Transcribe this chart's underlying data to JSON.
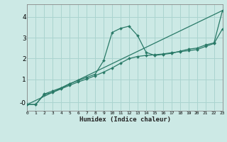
{
  "xlabel": "Humidex (Indice chaleur)",
  "bg_color": "#cce9e5",
  "grid_color": "#aad4cf",
  "line_color": "#2a7a68",
  "xlim": [
    0,
    23
  ],
  "ylim": [
    -0.5,
    4.6
  ],
  "xtick_labels": [
    "0",
    "1",
    "2",
    "3",
    "4",
    "5",
    "6",
    "7",
    "8",
    "9",
    "10",
    "11",
    "12",
    "13",
    "14",
    "15",
    "16",
    "17",
    "18",
    "19",
    "20",
    "21",
    "22",
    "23"
  ],
  "ytick_labels": [
    "-0",
    "1",
    "2",
    "3",
    "4"
  ],
  "ytick_vals": [
    -0.1,
    1,
    2,
    3,
    4
  ],
  "series1_x": [
    0,
    1,
    2,
    3,
    4,
    5,
    6,
    7,
    8,
    9,
    10,
    11,
    12,
    13,
    14,
    15,
    16,
    17,
    18,
    19,
    20,
    21,
    22,
    23
  ],
  "series1_y": [
    -0.2,
    -0.2,
    0.3,
    0.45,
    0.6,
    0.8,
    0.95,
    1.1,
    1.25,
    1.9,
    3.25,
    3.45,
    3.55,
    3.1,
    2.3,
    2.15,
    2.2,
    2.25,
    2.35,
    2.45,
    2.5,
    2.65,
    2.75,
    4.3
  ],
  "series2_x": [
    0,
    1,
    2,
    3,
    4,
    5,
    6,
    7,
    8,
    9,
    10,
    11,
    12,
    13,
    14,
    15,
    16,
    17,
    18,
    19,
    20,
    21,
    22,
    23
  ],
  "series2_y": [
    -0.2,
    -0.2,
    0.28,
    0.38,
    0.55,
    0.72,
    0.88,
    1.02,
    1.18,
    1.35,
    1.55,
    1.78,
    2.0,
    2.1,
    2.15,
    2.18,
    2.22,
    2.28,
    2.33,
    2.38,
    2.43,
    2.58,
    2.72,
    3.42
  ],
  "series3_x": [
    0,
    23
  ],
  "series3_y": [
    -0.2,
    4.3
  ]
}
